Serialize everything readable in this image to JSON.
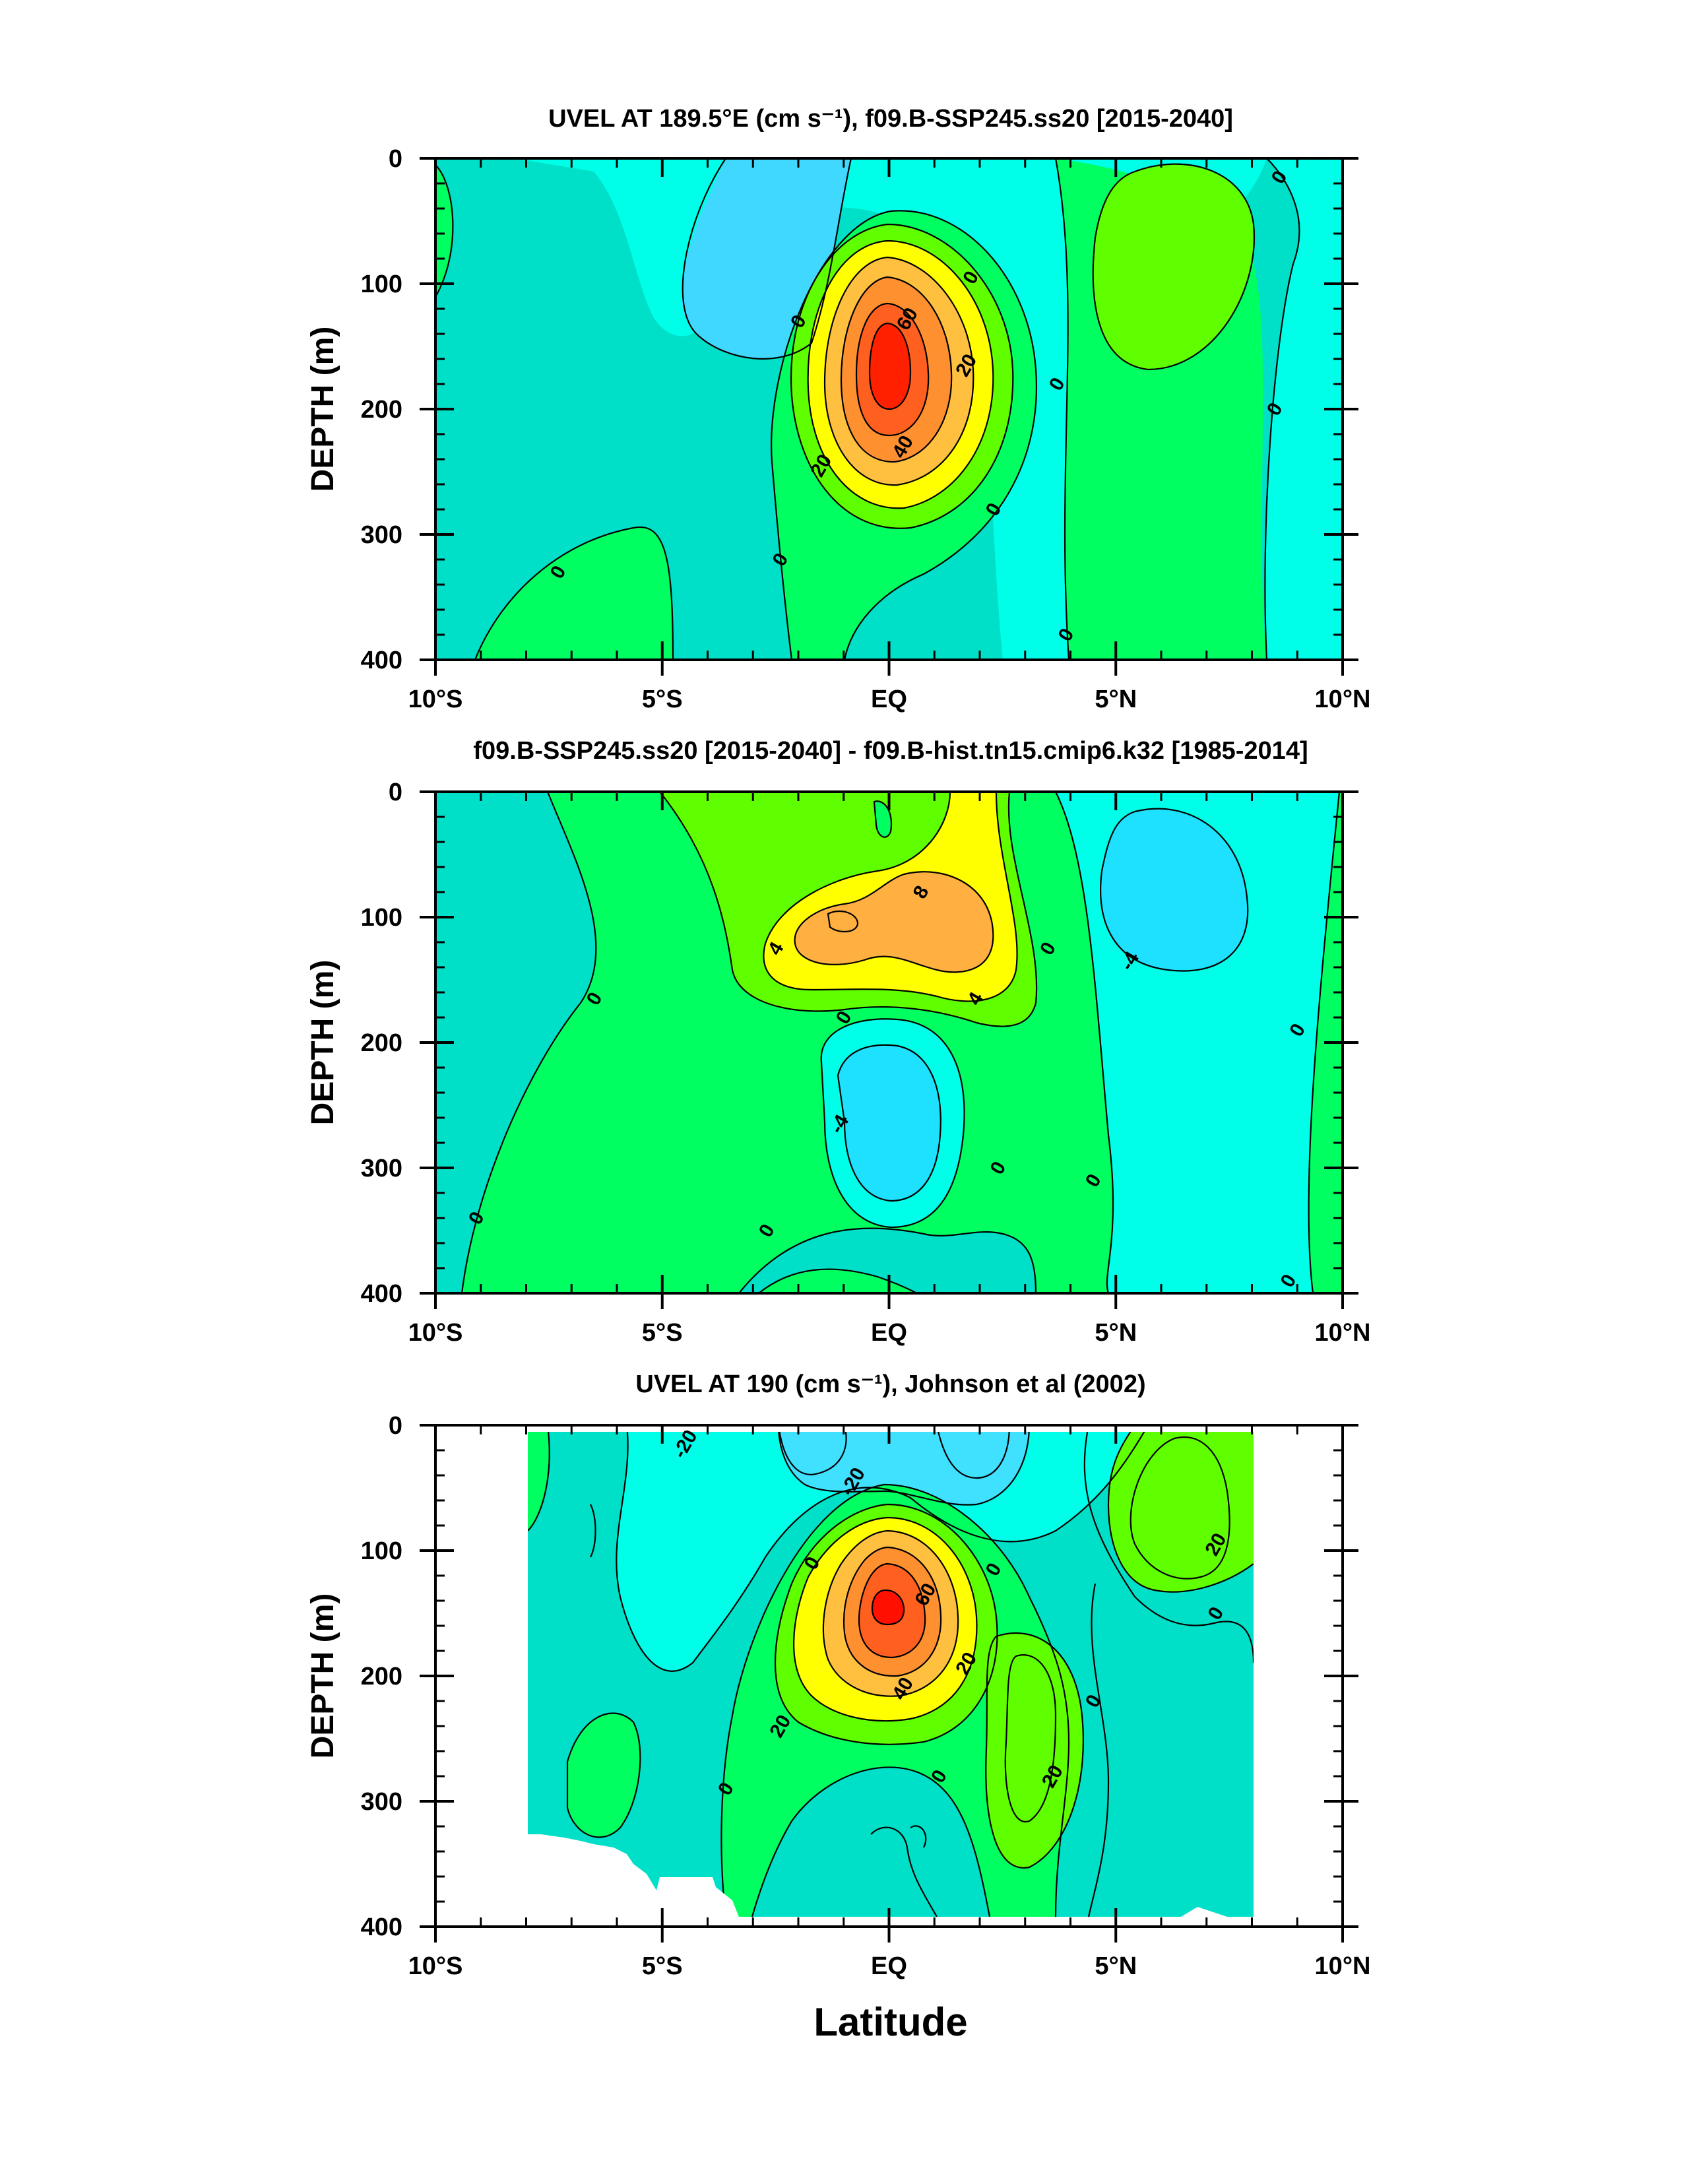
{
  "figure": {
    "xlabel": "Latitude"
  },
  "chart_data": [
    {
      "type": "contour",
      "title": "UVEL AT 189.5°E (cm s⁻¹), f09.B-SSP245.ss20 [2015-2040]",
      "ylabel": "DEPTH (m)",
      "x_ticks": [
        "10°S",
        "5°S",
        "EQ",
        "5°N",
        "10°N"
      ],
      "y_ticks": [
        "0",
        "100",
        "200",
        "300",
        "400"
      ],
      "xlim": [
        -10,
        10
      ],
      "ylim": [
        400,
        0
      ],
      "colors": {
        "neg2": "#40d8ff",
        "neg1": "#00ffe8",
        "zero": "#00e0c8",
        "pos1": "#00ff60",
        "pos2": "#60ff00",
        "pos3": "#ffff00",
        "pos4": "#ffc040",
        "pos5": "#ff9030",
        "pos6": "#ff6020",
        "pos7": "#ff2000"
      },
      "features": [
        {
          "kind": "core",
          "lat": 0,
          "depth": 150,
          "max_value": 80,
          "levels": [
            20,
            40,
            60
          ]
        },
        {
          "kind": "band",
          "lat": 6.5,
          "depth": 90,
          "value": 10
        }
      ],
      "contour_labels": [
        {
          "text": "0",
          "lat": -2,
          "depth": 130
        },
        {
          "text": "60",
          "lat": 0.4,
          "depth": 128
        },
        {
          "text": "20",
          "lat": 1.7,
          "depth": 165
        },
        {
          "text": "0",
          "lat": 1.8,
          "depth": 95
        },
        {
          "text": "0",
          "lat": 3.7,
          "depth": 180
        },
        {
          "text": "0",
          "lat": 8.6,
          "depth": 15
        },
        {
          "text": "0",
          "lat": 8.5,
          "depth": 200
        },
        {
          "text": "40",
          "lat": 0.3,
          "depth": 230
        },
        {
          "text": "20",
          "lat": -1.5,
          "depth": 245
        },
        {
          "text": "0",
          "lat": 2.3,
          "depth": 280
        },
        {
          "text": "0",
          "lat": -2.4,
          "depth": 320
        },
        {
          "text": "0",
          "lat": -7.3,
          "depth": 330
        },
        {
          "text": "0",
          "lat": 3.9,
          "depth": 380
        }
      ]
    },
    {
      "type": "contour",
      "title": "f09.B-SSP245.ss20 [2015-2040] - f09.B-hist.tn15.cmip6.k32 [1985-2014]",
      "ylabel": "DEPTH (m)",
      "x_ticks": [
        "10°S",
        "5°S",
        "EQ",
        "5°N",
        "10°N"
      ],
      "y_ticks": [
        "0",
        "100",
        "200",
        "300",
        "400"
      ],
      "xlim": [
        -10,
        10
      ],
      "ylim": [
        400,
        0
      ],
      "features": [
        {
          "kind": "core",
          "lat": 0.5,
          "depth": 115,
          "max_value": 10,
          "levels": [
            4,
            8
          ]
        },
        {
          "kind": "low",
          "lat": 0,
          "depth": 280,
          "min_value": -6
        },
        {
          "kind": "low",
          "lat": 5.5,
          "depth": 100,
          "min_value": -6
        }
      ],
      "contour_labels": [
        {
          "text": "8",
          "lat": 0.7,
          "depth": 80
        },
        {
          "text": "4",
          "lat": -2.5,
          "depth": 125
        },
        {
          "text": "4",
          "lat": 1.9,
          "depth": 165
        },
        {
          "text": "0",
          "lat": -1,
          "depth": 180
        },
        {
          "text": "0",
          "lat": 3.5,
          "depth": 125
        },
        {
          "text": "-4",
          "lat": 5.3,
          "depth": 135
        },
        {
          "text": "0",
          "lat": -6.5,
          "depth": 165
        },
        {
          "text": "0",
          "lat": 9,
          "depth": 190
        },
        {
          "text": "-4",
          "lat": -1.1,
          "depth": 265
        },
        {
          "text": "0",
          "lat": 2.4,
          "depth": 300
        },
        {
          "text": "0",
          "lat": 4.5,
          "depth": 310
        },
        {
          "text": "0",
          "lat": -9.1,
          "depth": 340
        },
        {
          "text": "0",
          "lat": -2.7,
          "depth": 350
        },
        {
          "text": "0",
          "lat": 8.8,
          "depth": 390
        }
      ]
    },
    {
      "type": "contour",
      "title": "UVEL AT 190 (cm s⁻¹), Johnson et al (2002)",
      "ylabel": "DEPTH (m)",
      "x_ticks": [
        "10°S",
        "5°S",
        "EQ",
        "5°N",
        "10°N"
      ],
      "y_ticks": [
        "0",
        "100",
        "200",
        "300",
        "400"
      ],
      "xlim": [
        -10,
        10
      ],
      "ylim": [
        400,
        0
      ],
      "data_extent": {
        "lat": [
          -8,
          8
        ],
        "depth": [
          0,
          400
        ]
      },
      "features": [
        {
          "kind": "core",
          "lat": 0,
          "depth": 150,
          "max_value": 90,
          "levels": [
            20,
            40,
            60
          ]
        },
        {
          "kind": "band",
          "lat": 6.5,
          "depth": 80,
          "value": 25
        },
        {
          "kind": "band",
          "lat": 3,
          "depth": 260,
          "value": 25
        }
      ],
      "contour_labels": [
        {
          "text": "-20",
          "lat": -4.5,
          "depth": 15
        },
        {
          "text": "-20",
          "lat": -0.8,
          "depth": 45
        },
        {
          "text": "0",
          "lat": -1.7,
          "depth": 110
        },
        {
          "text": "0",
          "lat": 2.3,
          "depth": 115
        },
        {
          "text": "60",
          "lat": 0.8,
          "depth": 135
        },
        {
          "text": "20",
          "lat": 7.2,
          "depth": 95
        },
        {
          "text": "0",
          "lat": 7.2,
          "depth": 150
        },
        {
          "text": "20",
          "lat": 1.7,
          "depth": 190
        },
        {
          "text": "40",
          "lat": 0.3,
          "depth": 210
        },
        {
          "text": "0",
          "lat": 4.5,
          "depth": 220
        },
        {
          "text": "20",
          "lat": -2.4,
          "depth": 240
        },
        {
          "text": "20",
          "lat": 3.6,
          "depth": 280
        },
        {
          "text": "0",
          "lat": 1.1,
          "depth": 280
        },
        {
          "text": "0",
          "lat": -3.6,
          "depth": 290
        }
      ]
    }
  ]
}
